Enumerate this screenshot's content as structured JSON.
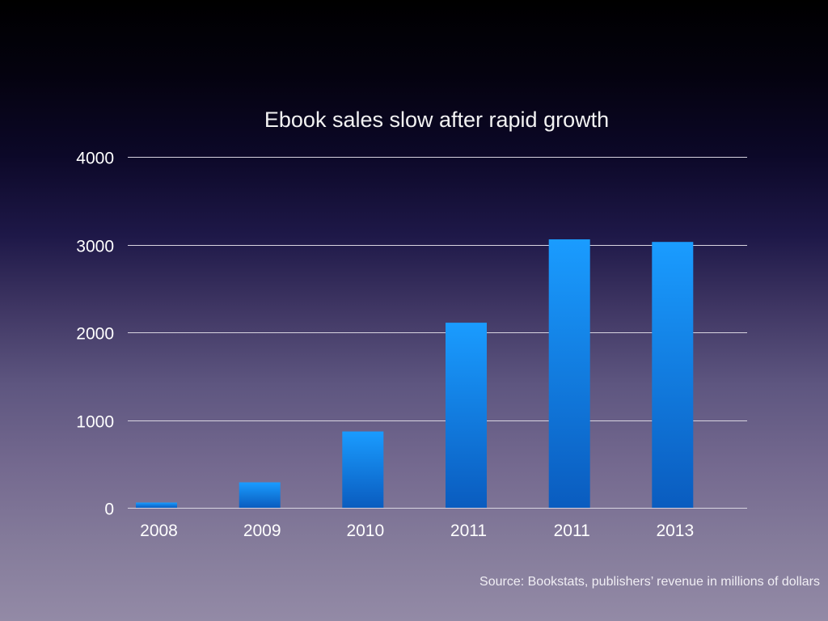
{
  "slide": {
    "title": "Ebook sales slow after rapid growth",
    "source_note": "Source: Bookstats, publishers’ revenue in millions of dollars"
  },
  "colors": {
    "bar_top": "#1a9cff",
    "bar_bottom": "#0a5cbf",
    "gridline": "#d8d4e0",
    "text": "#ffffff"
  },
  "chart_data": {
    "type": "bar",
    "title": "Ebook sales slow after rapid growth",
    "xlabel": "",
    "ylabel": "",
    "categories": [
      "2008",
      "2009",
      "2010",
      "2011",
      "2011",
      "2013"
    ],
    "values": [
      60,
      290,
      870,
      2110,
      3060,
      3030
    ],
    "ylim": [
      0,
      4000
    ],
    "yticks": [
      0,
      1000,
      2000,
      3000,
      4000
    ],
    "grid": true,
    "legend": "none",
    "annotations": [
      "Source: Bookstats, publishers’ revenue in millions of dollars"
    ]
  }
}
